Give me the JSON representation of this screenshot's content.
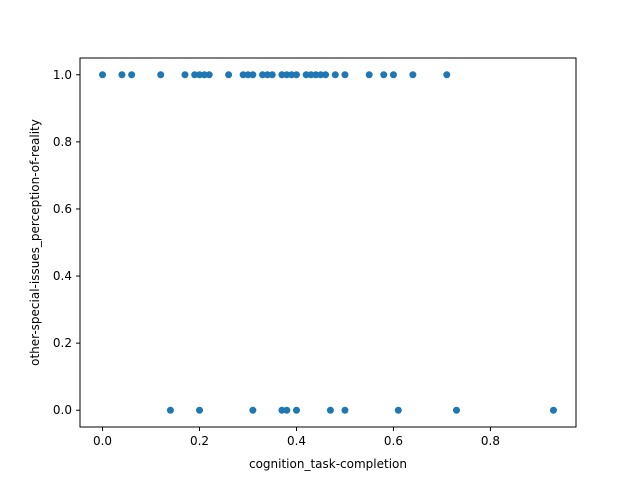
{
  "chart_data": {
    "type": "scatter",
    "title": "",
    "xlabel": "cognition_task-completion",
    "ylabel": "other-special-issues_perception-of-reality",
    "xlim": [
      -0.0465,
      0.9765
    ],
    "ylim": [
      -0.05,
      1.05
    ],
    "x_ticks": [
      0.0,
      0.2,
      0.4,
      0.6,
      0.8
    ],
    "x_tick_labels": [
      "0.0",
      "0.2",
      "0.4",
      "0.6",
      "0.8"
    ],
    "y_ticks": [
      0.0,
      0.2,
      0.4,
      0.6,
      0.8,
      1.0
    ],
    "y_tick_labels": [
      "0.0",
      "0.2",
      "0.4",
      "0.6",
      "0.8",
      "1.0"
    ],
    "grid": false,
    "legend": "none",
    "colors": {
      "points": "#1f77b4"
    },
    "points": [
      {
        "x": 0.0,
        "y": 1
      },
      {
        "x": 0.04,
        "y": 1
      },
      {
        "x": 0.06,
        "y": 1
      },
      {
        "x": 0.12,
        "y": 1
      },
      {
        "x": 0.17,
        "y": 1
      },
      {
        "x": 0.19,
        "y": 1
      },
      {
        "x": 0.2,
        "y": 1
      },
      {
        "x": 0.21,
        "y": 1
      },
      {
        "x": 0.22,
        "y": 1
      },
      {
        "x": 0.26,
        "y": 1
      },
      {
        "x": 0.29,
        "y": 1
      },
      {
        "x": 0.3,
        "y": 1
      },
      {
        "x": 0.31,
        "y": 1
      },
      {
        "x": 0.33,
        "y": 1
      },
      {
        "x": 0.34,
        "y": 1
      },
      {
        "x": 0.35,
        "y": 1
      },
      {
        "x": 0.37,
        "y": 1
      },
      {
        "x": 0.38,
        "y": 1
      },
      {
        "x": 0.39,
        "y": 1
      },
      {
        "x": 0.4,
        "y": 1
      },
      {
        "x": 0.42,
        "y": 1
      },
      {
        "x": 0.43,
        "y": 1
      },
      {
        "x": 0.44,
        "y": 1
      },
      {
        "x": 0.45,
        "y": 1
      },
      {
        "x": 0.46,
        "y": 1
      },
      {
        "x": 0.48,
        "y": 1
      },
      {
        "x": 0.5,
        "y": 1
      },
      {
        "x": 0.55,
        "y": 1
      },
      {
        "x": 0.58,
        "y": 1
      },
      {
        "x": 0.6,
        "y": 1
      },
      {
        "x": 0.64,
        "y": 1
      },
      {
        "x": 0.71,
        "y": 1
      },
      {
        "x": 0.14,
        "y": 0
      },
      {
        "x": 0.2,
        "y": 0
      },
      {
        "x": 0.31,
        "y": 0
      },
      {
        "x": 0.37,
        "y": 0
      },
      {
        "x": 0.38,
        "y": 0
      },
      {
        "x": 0.4,
        "y": 0
      },
      {
        "x": 0.47,
        "y": 0
      },
      {
        "x": 0.5,
        "y": 0
      },
      {
        "x": 0.61,
        "y": 0
      },
      {
        "x": 0.73,
        "y": 0
      },
      {
        "x": 0.93,
        "y": 0
      }
    ]
  }
}
